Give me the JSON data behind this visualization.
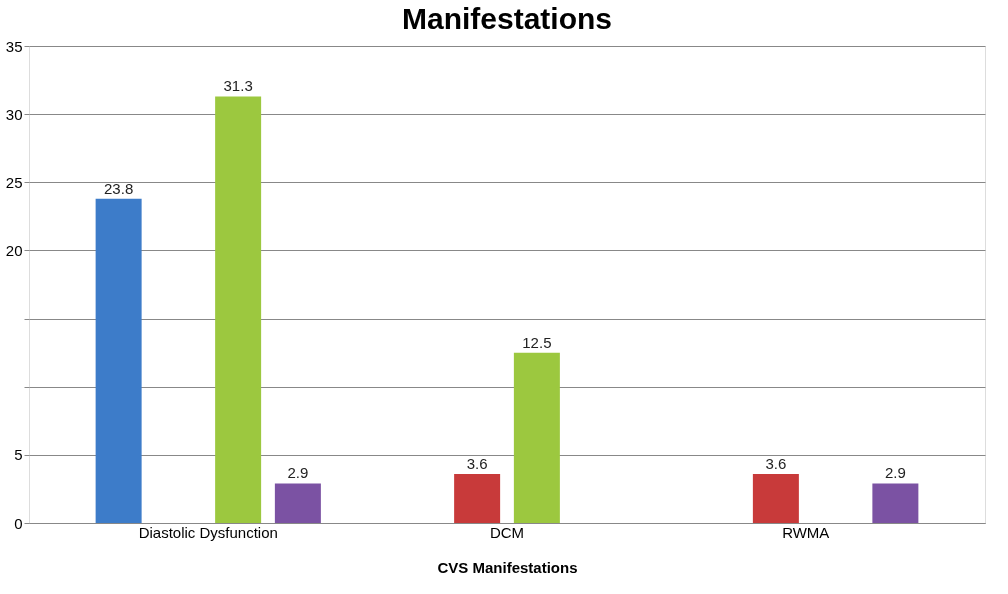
{
  "chart_data": {
    "type": "bar",
    "title": "Manifestations",
    "xlabel": "CVS Manifestations",
    "categories": [
      "Diastolic Dysfunction",
      "DCM",
      "RWMA"
    ],
    "series": [
      {
        "color": "#3d7cc9",
        "values": [
          23.8,
          null,
          null
        ]
      },
      {
        "color": "#c83a3a",
        "values": [
          null,
          3.6,
          3.6
        ]
      },
      {
        "color": "#9cc83f",
        "values": [
          31.3,
          12.5,
          null
        ]
      },
      {
        "color": "#7b52a3",
        "values": [
          2.9,
          null,
          2.9
        ]
      }
    ],
    "ylim": [
      0,
      35
    ],
    "yticks": [
      0,
      5,
      {
        "value": 10,
        "label": null
      },
      {
        "value": 15,
        "label": null
      },
      20,
      25,
      30,
      35
    ],
    "grid": "y",
    "data_labels": true
  }
}
